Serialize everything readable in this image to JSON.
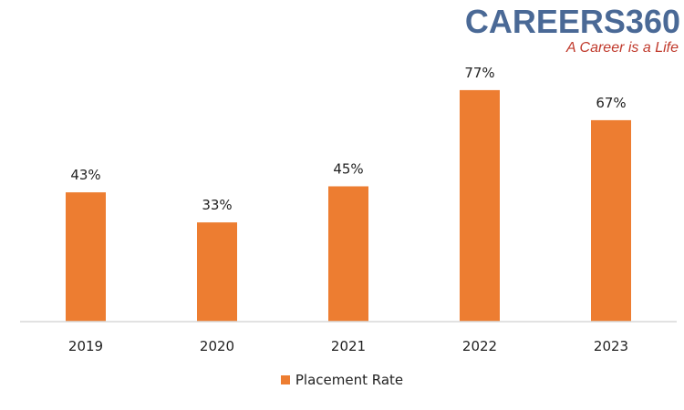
{
  "logo": {
    "main": "CAREERS360",
    "tagline": "A Career is a Life"
  },
  "colors": {
    "bar": "#ed7d31",
    "axis": "#d9d9d9",
    "text": "#222222",
    "logo_main": "#4a6996",
    "logo_tagline": "#c0392b"
  },
  "chart_data": {
    "type": "bar",
    "categories": [
      "2019",
      "2020",
      "2021",
      "2022",
      "2023"
    ],
    "series": [
      {
        "name": "Placement Rate",
        "values": [
          43,
          33,
          45,
          77,
          67
        ],
        "labels": [
          "43%",
          "33%",
          "45%",
          "77%",
          "67%"
        ]
      }
    ],
    "ylim": [
      0,
      80
    ],
    "grid": false,
    "legend": "bottom-center"
  }
}
